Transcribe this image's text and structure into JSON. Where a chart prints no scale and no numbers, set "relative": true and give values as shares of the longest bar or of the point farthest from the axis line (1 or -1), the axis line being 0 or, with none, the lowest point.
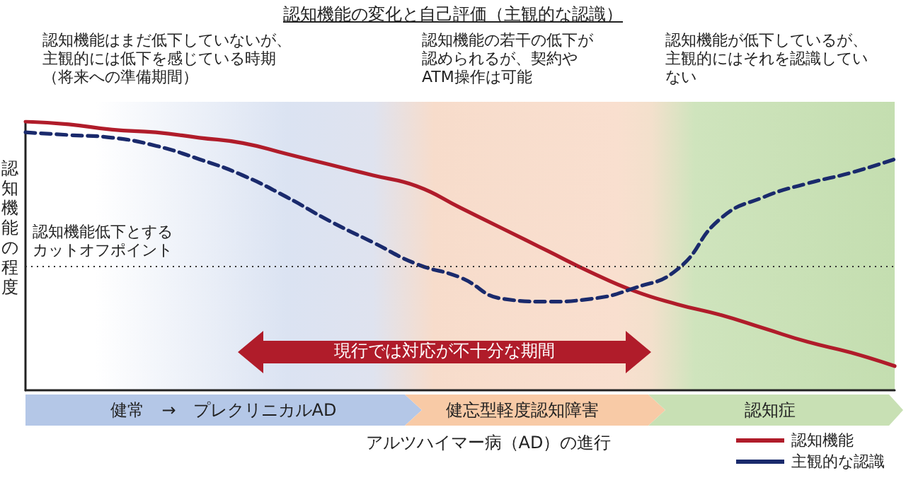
{
  "chart_data": {
    "type": "line",
    "relative": true,
    "title": "認知機能の変化と自己評価（主観的な認識）",
    "xlabel": "アルツハイマー病（AD）の進行",
    "ylabel": "認知機能の程度",
    "categories": [
      null,
      null,
      null,
      null,
      null,
      null,
      null,
      null,
      null,
      null,
      null,
      null,
      null,
      null,
      null,
      null,
      null,
      null,
      null,
      null,
      null
    ],
    "series": [
      {
        "name": "認知機能",
        "color": "#b01c2a",
        "line_style": "solid",
        "values": [
          1,
          0.99,
          0.97,
          0.96,
          0.94,
          0.92,
          0.88,
          0.84,
          0.8,
          0.76,
          0.68,
          0.6,
          0.52,
          0.44,
          0.37,
          0.32,
          0.28,
          0.23,
          0.18,
          0.14,
          0.09
        ]
      },
      {
        "name": "主観的な認識",
        "color": "#1a2a6c",
        "line_style": "dashed",
        "values": [
          0.96,
          0.95,
          0.94,
          0.91,
          0.86,
          0.8,
          0.72,
          0.63,
          0.55,
          0.47,
          0.42,
          0.34,
          0.33,
          0.34,
          0.38,
          0.45,
          0.64,
          0.72,
          0.77,
          0.81,
          0.86
        ]
      }
    ],
    "ref_lines": [
      {
        "axis": "y",
        "value": 0.46,
        "label": "認知機能低下とするカットオフポイント",
        "color": "#333333",
        "line_style": "dotted"
      }
    ],
    "annotations": [
      "認知機能はまだ低下していないが、主観的には低下を感じている時期（将来への準備期間）",
      "認知機能の若干の低下が認められるが、契約やATM操作は可能",
      "認知機能が低下しているが、主観的にはそれを認識していない",
      "現行では対応が不十分な期間",
      "健常　→　プレクリニカルAD",
      "健忘型軽度認知障害",
      "認知症"
    ],
    "legend": "bottom right",
    "marker": "none",
    "grid": false
  }
}
